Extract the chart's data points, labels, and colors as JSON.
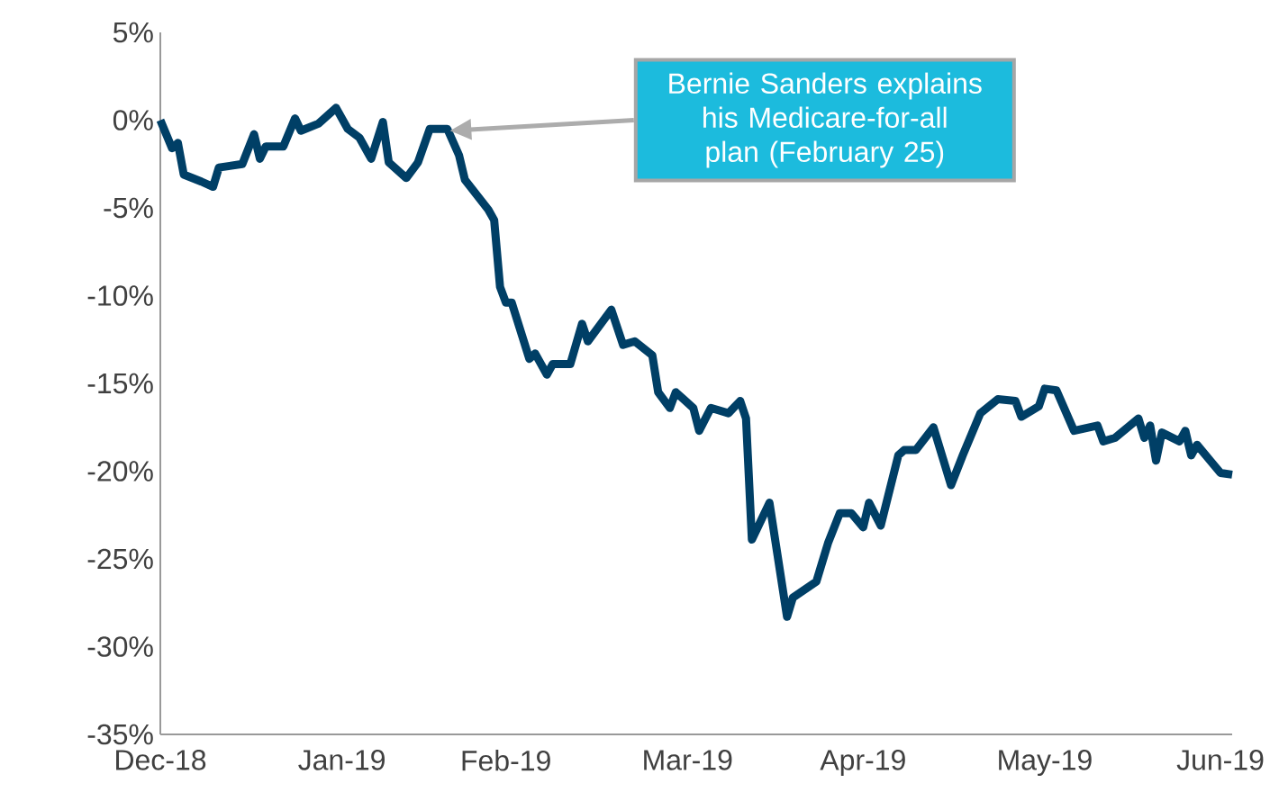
{
  "chart_data": {
    "type": "line",
    "x": [
      "2018-12-31",
      "2019-01-02",
      "2019-01-03",
      "2019-01-04",
      "2019-01-07",
      "2019-01-09",
      "2019-01-10",
      "2019-01-14",
      "2019-01-16",
      "2019-01-17",
      "2019-01-18",
      "2019-01-21",
      "2019-01-23",
      "2019-01-24",
      "2019-01-27",
      "2019-01-30",
      "2019-02-01",
      "2019-02-03",
      "2019-02-05",
      "2019-02-07",
      "2019-02-08",
      "2019-02-11",
      "2019-02-13",
      "2019-02-15",
      "2019-02-18",
      "2019-02-20",
      "2019-02-21",
      "2019-02-25",
      "2019-02-26",
      "2019-02-27",
      "2019-02-28",
      "2019-03-01",
      "2019-03-04",
      "2019-03-05",
      "2019-03-07",
      "2019-03-08",
      "2019-03-11",
      "2019-03-13",
      "2019-03-14",
      "2019-03-18",
      "2019-03-20",
      "2019-03-22",
      "2019-03-25",
      "2019-03-26",
      "2019-03-28",
      "2019-03-29",
      "2019-04-01",
      "2019-04-02",
      "2019-04-04",
      "2019-04-07",
      "2019-04-09",
      "2019-04-10",
      "2019-04-11",
      "2019-04-14",
      "2019-04-17",
      "2019-04-18",
      "2019-04-22",
      "2019-04-23",
      "2019-04-24",
      "2019-04-26",
      "2019-04-28",
      "2019-04-30",
      "2019-05-01",
      "2019-05-03",
      "2019-05-06",
      "2019-05-07",
      "2019-05-09",
      "2019-05-12",
      "2019-05-15",
      "2019-05-17",
      "2019-05-20",
      "2019-05-23",
      "2019-05-26",
      "2019-05-27",
      "2019-05-30",
      "2019-05-31",
      "2019-06-02",
      "2019-06-05",
      "2019-06-09",
      "2019-06-10",
      "2019-06-12",
      "2019-06-16",
      "2019-06-17",
      "2019-06-18",
      "2019-06-19",
      "2019-06-20",
      "2019-06-23",
      "2019-06-24",
      "2019-06-25",
      "2019-06-26",
      "2019-06-30",
      "2019-07-02"
    ],
    "values": [
      0,
      -1.6,
      -1.3,
      -3.1,
      -3.5,
      -3.8,
      -2.7,
      -2.5,
      -0.8,
      -2.2,
      -1.5,
      -1.5,
      0.1,
      -0.6,
      -0.2,
      0.7,
      -0.5,
      -1.0,
      -2.2,
      -0.1,
      -2.4,
      -3.3,
      -2.4,
      -0.5,
      -0.5,
      -2.0,
      -3.4,
      -5.1,
      -5.7,
      -9.5,
      -10.4,
      -10.4,
      -13.6,
      -13.3,
      -14.5,
      -13.9,
      -13.9,
      -11.6,
      -12.6,
      -10.8,
      -12.8,
      -12.6,
      -13.4,
      -15.5,
      -16.4,
      -15.5,
      -16.4,
      -17.7,
      -16.4,
      -16.7,
      -16.0,
      -17.0,
      -23.9,
      -21.8,
      -28.3,
      -27.2,
      -26.3,
      -25.2,
      -24.1,
      -22.4,
      -22.4,
      -23.2,
      -21.8,
      -23.1,
      -19.1,
      -18.8,
      -18.8,
      -17.5,
      -20.8,
      -19.1,
      -16.7,
      -15.9,
      -16.0,
      -16.9,
      -16.3,
      -15.3,
      -15.4,
      -17.7,
      -17.4,
      -18.3,
      -18.1,
      -17.0,
      -18.1,
      -17.4,
      -19.4,
      -17.8,
      -18.3,
      -17.7,
      -19.1,
      -18.5,
      -20.1,
      -20.2
    ],
    "color": "#003f66",
    "xlim": [
      "2018-12-31",
      "2019-07-02"
    ],
    "xticks": [
      {
        "value": "2018-12-31",
        "label": "Dec-18"
      },
      {
        "value": "2019-01-31",
        "label": "Jan-19"
      },
      {
        "value": "2019-02-28",
        "label": "Feb-19"
      },
      {
        "value": "2019-03-31",
        "label": "Mar-19"
      },
      {
        "value": "2019-04-30",
        "label": "Apr-19"
      },
      {
        "value": "2019-05-31",
        "label": "May-19"
      },
      {
        "value": "2019-06-30",
        "label": "Jun-19"
      }
    ],
    "ylim": [
      -35,
      5
    ],
    "yticks": [
      {
        "value": 5,
        "label": "5%"
      },
      {
        "value": 0,
        "label": "0%"
      },
      {
        "value": -5,
        "label": "-5%"
      },
      {
        "value": -10,
        "label": "-10%"
      },
      {
        "value": -15,
        "label": "-15%"
      },
      {
        "value": -20,
        "label": "-20%"
      },
      {
        "value": -25,
        "label": "-25%"
      },
      {
        "value": -30,
        "label": "-30%"
      },
      {
        "value": -35,
        "label": "-35%"
      }
    ],
    "annotations": [
      "Bernie Sanders explains his Medicare-for-all plan (February 25)"
    ],
    "grid": false,
    "marker": "none",
    "line_style": "solid"
  }
}
